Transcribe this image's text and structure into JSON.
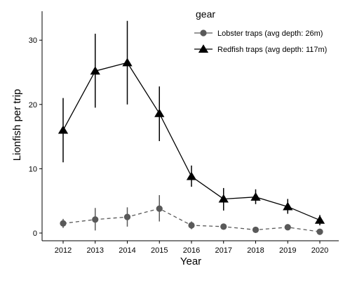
{
  "chart_data": {
    "type": "line",
    "x": [
      2012,
      2013,
      2014,
      2015,
      2016,
      2017,
      2018,
      2019,
      2020
    ],
    "x_tick_labels": [
      "2012",
      "2013",
      "2014",
      "2015",
      "2016",
      "2017",
      "2018",
      "2019",
      "2020"
    ],
    "xlabel": "Year",
    "ylabel": "Lionfish per trip",
    "ylim": [
      -1.2,
      34.5
    ],
    "y_ticks": [
      0,
      10,
      20,
      30
    ],
    "y_tick_labels": [
      "0",
      "10",
      "20",
      "30"
    ],
    "grid": false,
    "legend": {
      "title": "gear",
      "placement": "top-right"
    },
    "series": [
      {
        "name": "Lobster traps (avg depth: 26m)",
        "marker": "circle",
        "line_style": "dashed",
        "color": "#595959",
        "values": [
          1.5,
          2.1,
          2.5,
          3.8,
          1.2,
          1.0,
          0.5,
          0.9,
          0.2
        ],
        "error_low": [
          0.8,
          0.4,
          1.0,
          1.8,
          0.6,
          0.6,
          0.3,
          0.5,
          0.1
        ],
        "error_high": [
          2.2,
          3.9,
          4.0,
          5.9,
          1.8,
          1.3,
          0.8,
          1.3,
          0.5
        ]
      },
      {
        "name": "Redfish traps (avg depth: 117m)",
        "marker": "triangle",
        "line_style": "solid",
        "color": "#000000",
        "values": [
          16.0,
          25.2,
          26.5,
          18.6,
          8.8,
          5.3,
          5.6,
          4.1,
          2.0
        ],
        "error_low": [
          11.0,
          19.5,
          20.0,
          14.3,
          7.2,
          3.5,
          4.5,
          3.0,
          1.2
        ],
        "error_high": [
          21.0,
          31.0,
          33.0,
          22.8,
          10.5,
          7.0,
          6.8,
          5.3,
          2.8
        ]
      }
    ]
  }
}
